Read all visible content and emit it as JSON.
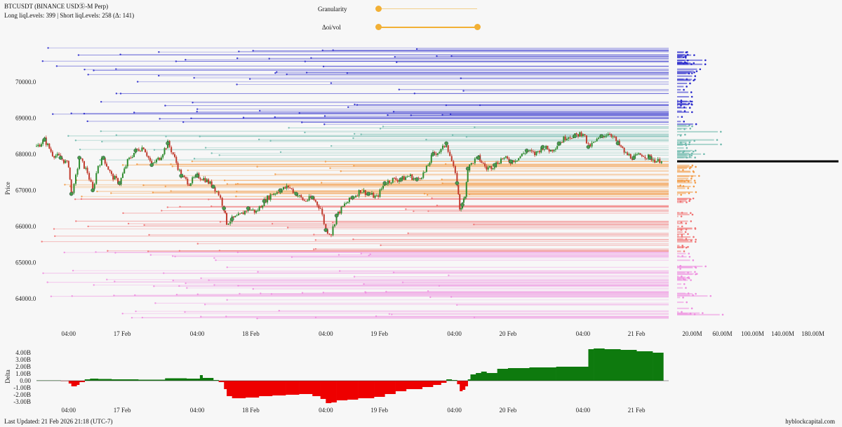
{
  "header": {
    "symbol": "BTCUSDT (BINANCE USDⓈ-M Perp)",
    "levels_summary": "Long liqLevels: 399 | Short liqLevels: 258 (Δ: 141)"
  },
  "controls": {
    "granularity_label": "Granularity",
    "granularity_value": 0.0,
    "oi_vol_label": "Δoi/vol",
    "oi_vol_range": [
      0.0,
      1.0
    ],
    "accent_color": "#f2b035"
  },
  "footer": {
    "last_updated": "Last Updated: 21 Feb 2026 21:18 (UTC-7)",
    "source": "hyblockcapital.com"
  },
  "chart_data": [
    {
      "type": "line",
      "ylabel": "Price",
      "ylim": [
        63300,
        71200
      ],
      "y_ticks": [
        "64000.0",
        "65000.0",
        "66000.0",
        "67000.0",
        "68000.0",
        "69000.0",
        "70000.0"
      ],
      "x_ticks": [
        "04:00",
        "17 Feb",
        "04:00",
        "18 Feb",
        "04:00",
        "19 Feb",
        "04:00",
        "20 Feb",
        "04:00",
        "21 Feb"
      ],
      "x_ticks_hours": [
        4,
        24,
        52,
        72,
        100,
        120,
        148,
        168,
        196,
        216
      ],
      "x_range_hours": [
        -8,
        228
      ],
      "series": [
        {
          "points": [
            [
              -8,
              68200
            ],
            [
              -5,
              68400
            ],
            [
              -2,
              68000
            ],
            [
              1,
              67900
            ],
            [
              4,
              67700
            ],
            [
              5,
              66900
            ],
            [
              6,
              67100
            ],
            [
              8,
              67900
            ],
            [
              11,
              67500
            ],
            [
              13,
              67000
            ],
            [
              15,
              67700
            ],
            [
              17,
              67900
            ],
            [
              20,
              67400
            ],
            [
              23,
              67200
            ],
            [
              26,
              67800
            ],
            [
              29,
              68100
            ],
            [
              32,
              68200
            ],
            [
              35,
              67700
            ],
            [
              38,
              67900
            ],
            [
              41,
              68300
            ],
            [
              43,
              68000
            ],
            [
              46,
              67400
            ],
            [
              49,
              67200
            ],
            [
              52,
              67400
            ],
            [
              55,
              67300
            ],
            [
              58,
              67100
            ],
            [
              60,
              66900
            ],
            [
              62,
              66500
            ],
            [
              63,
              66100
            ],
            [
              65,
              66200
            ],
            [
              68,
              66300
            ],
            [
              71,
              66500
            ],
            [
              74,
              66400
            ],
            [
              77,
              66700
            ],
            [
              80,
              66900
            ],
            [
              83,
              67000
            ],
            [
              86,
              67100
            ],
            [
              89,
              66900
            ],
            [
              92,
              66700
            ],
            [
              95,
              66800
            ],
            [
              98,
              66500
            ],
            [
              100,
              65900
            ],
            [
              102,
              65800
            ],
            [
              104,
              66300
            ],
            [
              107,
              66600
            ],
            [
              110,
              66800
            ],
            [
              113,
              67000
            ],
            [
              116,
              66900
            ],
            [
              119,
              66800
            ],
            [
              122,
              67200
            ],
            [
              125,
              67300
            ],
            [
              128,
              67300
            ],
            [
              131,
              67400
            ],
            [
              134,
              67300
            ],
            [
              137,
              67500
            ],
            [
              140,
              68000
            ],
            [
              143,
              68100
            ],
            [
              145,
              68300
            ],
            [
              147,
              67800
            ],
            [
              149,
              67200
            ],
            [
              150,
              66500
            ],
            [
              151,
              66600
            ],
            [
              152,
              66900
            ],
            [
              153,
              67600
            ],
            [
              155,
              67800
            ],
            [
              157,
              67900
            ],
            [
              160,
              67600
            ],
            [
              163,
              67700
            ],
            [
              166,
              67900
            ],
            [
              169,
              67800
            ],
            [
              172,
              67900
            ],
            [
              175,
              68100
            ],
            [
              178,
              68000
            ],
            [
              181,
              68200
            ],
            [
              184,
              68100
            ],
            [
              187,
              68300
            ],
            [
              190,
              68500
            ],
            [
              193,
              68500
            ],
            [
              196,
              68600
            ],
            [
              198,
              68200
            ],
            [
              200,
              68300
            ],
            [
              203,
              68500
            ],
            [
              206,
              68600
            ],
            [
              209,
              68300
            ],
            [
              212,
              68000
            ],
            [
              215,
              67900
            ],
            [
              218,
              68000
            ],
            [
              221,
              67900
            ],
            [
              224,
              67800
            ],
            [
              226,
              67900
            ]
          ]
        }
      ],
      "long_liq_levels": 399,
      "short_liq_levels": 258,
      "current_price": 67800,
      "colors": {
        "short_liq": "#2222cc",
        "short_liq_mid": "#5fb8a8",
        "long_liq_near": "#f08c3a",
        "long_liq_mid": "#f06a6a",
        "long_liq_far": "#ee88dd",
        "candle_up": "#2e8b2e",
        "candle_down": "#c0392b"
      }
    },
    {
      "type": "bar",
      "xlabel": "",
      "ylabel": "",
      "x_ticks": [
        "20.00M",
        "60.00M",
        "100.00M",
        "140.00M",
        "180.00M"
      ],
      "x_tick_values": [
        20,
        60,
        100,
        140,
        180
      ],
      "xlim": [
        0,
        200
      ]
    },
    {
      "type": "area",
      "ylabel": "Delta",
      "ylim": [
        -3.5,
        5.0
      ],
      "y_ticks": [
        "4.00B",
        "3.00B",
        "2.00B",
        "1.00B",
        "0.00",
        "-1.00B",
        "-2.00B",
        "-3.00B"
      ],
      "y_tick_values": [
        4,
        3,
        2,
        1,
        0,
        -1,
        -2,
        -3
      ],
      "x_ticks": [
        "04:00",
        "17 Feb",
        "04:00",
        "18 Feb",
        "04:00",
        "19 Feb",
        "04:00",
        "20 Feb",
        "04:00",
        "21 Feb"
      ],
      "values": [
        [
          -8,
          0.05
        ],
        [
          0,
          0.05
        ],
        [
          1,
          -0.05
        ],
        [
          4,
          -0.4
        ],
        [
          5,
          -0.8
        ],
        [
          7,
          -0.6
        ],
        [
          8,
          -0.2
        ],
        [
          10,
          0.2
        ],
        [
          12,
          0.3
        ],
        [
          15,
          0.25
        ],
        [
          20,
          0.2
        ],
        [
          30,
          0.15
        ],
        [
          40,
          0.35
        ],
        [
          48,
          0.3
        ],
        [
          52,
          0.3
        ],
        [
          53,
          0.8
        ],
        [
          54,
          0.4
        ],
        [
          58,
          0.1
        ],
        [
          60,
          -0.2
        ],
        [
          62,
          -1.2
        ],
        [
          63,
          -2.2
        ],
        [
          65,
          -2.5
        ],
        [
          70,
          -2.4
        ],
        [
          75,
          -2.2
        ],
        [
          80,
          -2.1
        ],
        [
          85,
          -2.0
        ],
        [
          90,
          -1.9
        ],
        [
          95,
          -2.2
        ],
        [
          98,
          -2.6
        ],
        [
          100,
          -3.2
        ],
        [
          102,
          -3.1
        ],
        [
          104,
          -2.8
        ],
        [
          108,
          -2.7
        ],
        [
          112,
          -2.5
        ],
        [
          118,
          -2.3
        ],
        [
          122,
          -1.9
        ],
        [
          126,
          -1.5
        ],
        [
          130,
          -1.2
        ],
        [
          136,
          -0.9
        ],
        [
          140,
          -0.6
        ],
        [
          143,
          -0.3
        ],
        [
          145,
          0.2
        ],
        [
          147,
          0.1
        ],
        [
          149,
          -0.5
        ],
        [
          150,
          -1.5
        ],
        [
          151,
          -1.3
        ],
        [
          152,
          -0.8
        ],
        [
          153,
          0.2
        ],
        [
          154,
          0.9
        ],
        [
          156,
          1.1
        ],
        [
          158,
          1.3
        ],
        [
          160,
          1.1
        ],
        [
          164,
          1.7
        ],
        [
          168,
          1.8
        ],
        [
          172,
          1.8
        ],
        [
          176,
          1.9
        ],
        [
          180,
          1.9
        ],
        [
          186,
          2.0
        ],
        [
          190,
          2.0
        ],
        [
          196,
          2.0
        ],
        [
          198,
          4.5
        ],
        [
          200,
          4.6
        ],
        [
          204,
          4.5
        ],
        [
          210,
          4.4
        ],
        [
          216,
          4.2
        ],
        [
          222,
          4.0
        ],
        [
          226,
          3.8
        ]
      ],
      "colors": {
        "positive": "#0e7a0e",
        "negative": "#ee0000"
      }
    }
  ]
}
